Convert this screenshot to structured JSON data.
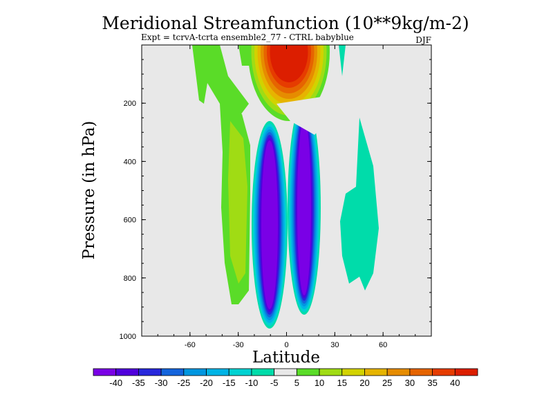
{
  "chart_data": {
    "type": "filled-contour",
    "title": "Meridional Streamfunction (10**9kg/m-2)",
    "subtitle": "Expt = tcrvA-tcrta ensemble2_77 - CTRL babyblue",
    "season": "DJF",
    "xlabel": "Latitude",
    "ylabel": "Pressure (in hPa)",
    "xlim": [
      -90,
      90
    ],
    "ylim": [
      1000,
      0
    ],
    "x_ticks": [
      {
        "value": -60,
        "label": "-60"
      },
      {
        "value": -30,
        "label": "-30"
      },
      {
        "value": 0,
        "label": "0"
      },
      {
        "value": 30,
        "label": "30"
      },
      {
        "value": 60,
        "label": "60"
      }
    ],
    "y_ticks": [
      {
        "value": 200,
        "label": "200"
      },
      {
        "value": 400,
        "label": "400"
      },
      {
        "value": 600,
        "label": "600"
      },
      {
        "value": 800,
        "label": "800"
      },
      {
        "value": 1000,
        "label": "1000"
      }
    ],
    "levels": [
      -40,
      -35,
      -30,
      -25,
      -20,
      -15,
      -10,
      -5,
      5,
      10,
      15,
      20,
      25,
      30,
      35,
      40
    ],
    "colors": [
      "#7a00e6",
      "#5000dc",
      "#2828dc",
      "#1464dc",
      "#0096e0",
      "#00b4e6",
      "#00d2d2",
      "#00dcaa",
      "#e8e8e8",
      "#5adc28",
      "#a0dc14",
      "#d2d200",
      "#e6b400",
      "#e68c00",
      "#e66400",
      "#e63c00",
      "#dc1e00"
    ],
    "colorbar_labels": [
      "-40",
      "-35",
      "-30",
      "-25",
      "-20",
      "-15",
      "-10",
      "-5",
      "5",
      "10",
      "15",
      "20",
      "25",
      "30",
      "35",
      "40"
    ],
    "features": [
      {
        "name": "sh-positive-cell",
        "lat": -30,
        "pressure": 500,
        "value": 15
      },
      {
        "name": "southern-negative-core",
        "lat": -10,
        "pressure": 500,
        "value": -40
      },
      {
        "name": "northern-negative-core",
        "lat": 10,
        "pressure": 450,
        "value": -40
      },
      {
        "name": "upper-positive-cell",
        "lat": 0,
        "pressure": 50,
        "value": 40
      },
      {
        "name": "nh-midlat-negative-cell",
        "lat": 48,
        "pressure": 650,
        "value": -5
      }
    ]
  }
}
